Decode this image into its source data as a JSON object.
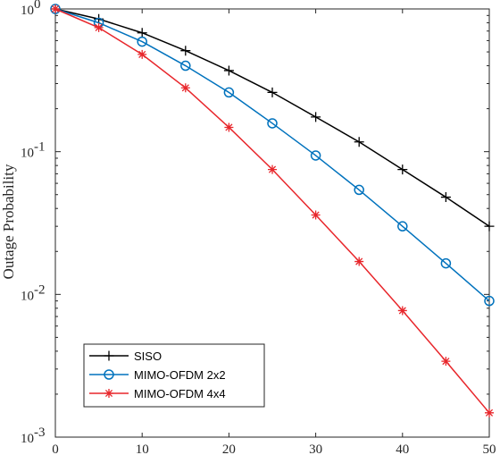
{
  "chart_data": {
    "type": "line",
    "title": "",
    "xlabel": "",
    "ylabel": "Outage Probability",
    "x_scale": "linear",
    "y_scale": "log",
    "xlim": [
      0,
      50
    ],
    "ylim": [
      0.001,
      1
    ],
    "x_ticks": [
      0,
      10,
      20,
      30,
      40,
      50
    ],
    "x_tick_labels": [
      "0",
      "10",
      "20",
      "30",
      "40",
      "50"
    ],
    "y_ticks": [
      {
        "value": 1,
        "base": "10",
        "exp": "0"
      },
      {
        "value": 0.1,
        "base": "10",
        "exp": "-1"
      },
      {
        "value": 0.01,
        "base": "10",
        "exp": "-2"
      },
      {
        "value": 0.001,
        "base": "10",
        "exp": "-3"
      }
    ],
    "grid": false,
    "legend_position": "bottom-left",
    "x": [
      0,
      5,
      10,
      15,
      20,
      25,
      30,
      35,
      40,
      45,
      50
    ],
    "series": [
      {
        "name": "SISO",
        "color": "#000000",
        "marker": "plus",
        "values": [
          1.0,
          0.85,
          0.68,
          0.51,
          0.37,
          0.26,
          0.175,
          0.117,
          0.075,
          0.048,
          0.03
        ]
      },
      {
        "name": "MIMO-OFDM 2x2",
        "color": "#0072BD",
        "marker": "circle",
        "values": [
          1.0,
          0.8,
          0.59,
          0.4,
          0.26,
          0.158,
          0.094,
          0.054,
          0.03,
          0.0165,
          0.009
        ]
      },
      {
        "name": "MIMO-OFDM 4x4",
        "color": "#E8262B",
        "marker": "asterisk",
        "values": [
          1.0,
          0.74,
          0.48,
          0.28,
          0.148,
          0.075,
          0.036,
          0.017,
          0.0077,
          0.0034,
          0.00148
        ]
      }
    ]
  }
}
